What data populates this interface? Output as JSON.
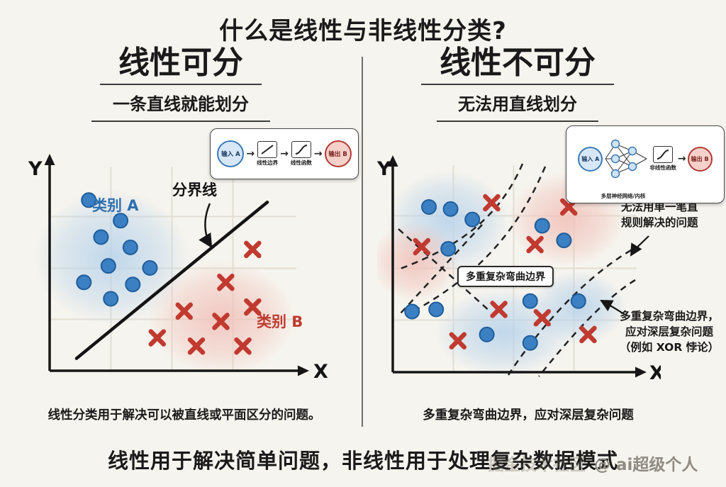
{
  "title": "什么是线性与非线性分类?",
  "footer": "线性用于解决简单问题，非线性用于处理复杂数据模式",
  "watermark": {
    "community": "掘金技术社区",
    "author": "@ ai超级个人"
  },
  "colors": {
    "background": "#f6f4ee",
    "ink": "#1a1a1a",
    "blue": "#3b80c2",
    "blue_dark": "#1f5d9b",
    "red": "#c03a30",
    "grid": "#e2ded4"
  },
  "left_panel": {
    "heading": "线性可分",
    "subheading": "一条直线就能划分",
    "axis_x": "X",
    "axis_y": "Y",
    "class_a_label": "类别 A",
    "class_b_label": "类别 B",
    "boundary_label": "分界线",
    "caption": "线性分类用于解决可以被直线或平面区分的问题。",
    "inset": {
      "input": "输入 A",
      "step1": "线性边界",
      "step2": "线性函数",
      "output": "输出 B"
    }
  },
  "right_panel": {
    "heading": "线性不可分",
    "subheading": "无法用直线划分",
    "axis_x": "X",
    "axis_y": "Y",
    "boundary_label": "多重复杂弯曲边界",
    "annotation_top": "无法用单一笔直\n规则解决的问题",
    "annotation_bottom": "多重复杂弯曲边界，\n应对深层复杂问题\n（例如 XOR 悖论）",
    "caption": "多重复杂弯曲边界，应对深层复杂问题",
    "inset": {
      "input": "输入 A",
      "network": "多层神经网络/内核",
      "func": "非线性函数",
      "output": "输出 B"
    }
  },
  "chart_data": [
    {
      "type": "scatter",
      "title": "线性可分",
      "xlabel": "X",
      "ylabel": "Y",
      "x_range": [
        0,
        10
      ],
      "y_range": [
        0,
        10
      ],
      "grid": true,
      "legend": "none",
      "series": [
        {
          "name": "类别 A",
          "marker": "circle",
          "color": "#3b80c2",
          "stroke": "#1f5d9b",
          "points": [
            [
              1.6,
              8.3
            ],
            [
              2.9,
              7.3
            ],
            [
              2.1,
              6.5
            ],
            [
              3.3,
              6.0
            ],
            [
              2.4,
              5.1
            ],
            [
              4.1,
              5.0
            ],
            [
              1.4,
              4.3
            ],
            [
              3.4,
              4.2
            ],
            [
              2.5,
              3.5
            ]
          ]
        },
        {
          "name": "类别 B",
          "marker": "x",
          "color": "#c03a30",
          "points": [
            [
              8.3,
              5.9
            ],
            [
              7.2,
              4.3
            ],
            [
              8.3,
              3.1
            ],
            [
              5.5,
              2.9
            ],
            [
              7.0,
              2.4
            ],
            [
              4.4,
              1.6
            ],
            [
              6.0,
              1.2
            ],
            [
              7.9,
              1.2
            ]
          ]
        }
      ],
      "boundary": {
        "type": "line",
        "from": [
          1.1,
          0.6
        ],
        "to": [
          8.9,
          8.2
        ],
        "label": "分界线"
      }
    },
    {
      "type": "scatter",
      "title": "线性不可分",
      "xlabel": "X",
      "ylabel": "Y",
      "x_range": [
        0,
        10
      ],
      "y_range": [
        0,
        10
      ],
      "grid": true,
      "legend": "none",
      "series": [
        {
          "name": "蓝色类别",
          "marker": "circle",
          "color": "#3b80c2",
          "stroke": "#1f5d9b",
          "points": [
            [
              1.5,
              7.9
            ],
            [
              2.4,
              7.8
            ],
            [
              3.3,
              7.3
            ],
            [
              2.3,
              5.9
            ],
            [
              6.2,
              7.0
            ],
            [
              7.1,
              6.3
            ],
            [
              0.8,
              2.9
            ],
            [
              1.8,
              3.0
            ],
            [
              3.9,
              1.8
            ],
            [
              5.7,
              3.4
            ],
            [
              7.7,
              3.4
            ],
            [
              5.7,
              1.4
            ]
          ]
        },
        {
          "name": "红色类别",
          "marker": "x",
          "color": "#c03a30",
          "points": [
            [
              4.1,
              8.1
            ],
            [
              7.3,
              7.9
            ],
            [
              5.9,
              6.1
            ],
            [
              1.2,
              6.0
            ],
            [
              4.4,
              3.0
            ],
            [
              6.2,
              2.6
            ],
            [
              8.1,
              1.8
            ],
            [
              2.7,
              1.5
            ]
          ]
        }
      ],
      "boundary": {
        "type": "curves",
        "label": "多重复杂弯曲边界"
      }
    }
  ]
}
